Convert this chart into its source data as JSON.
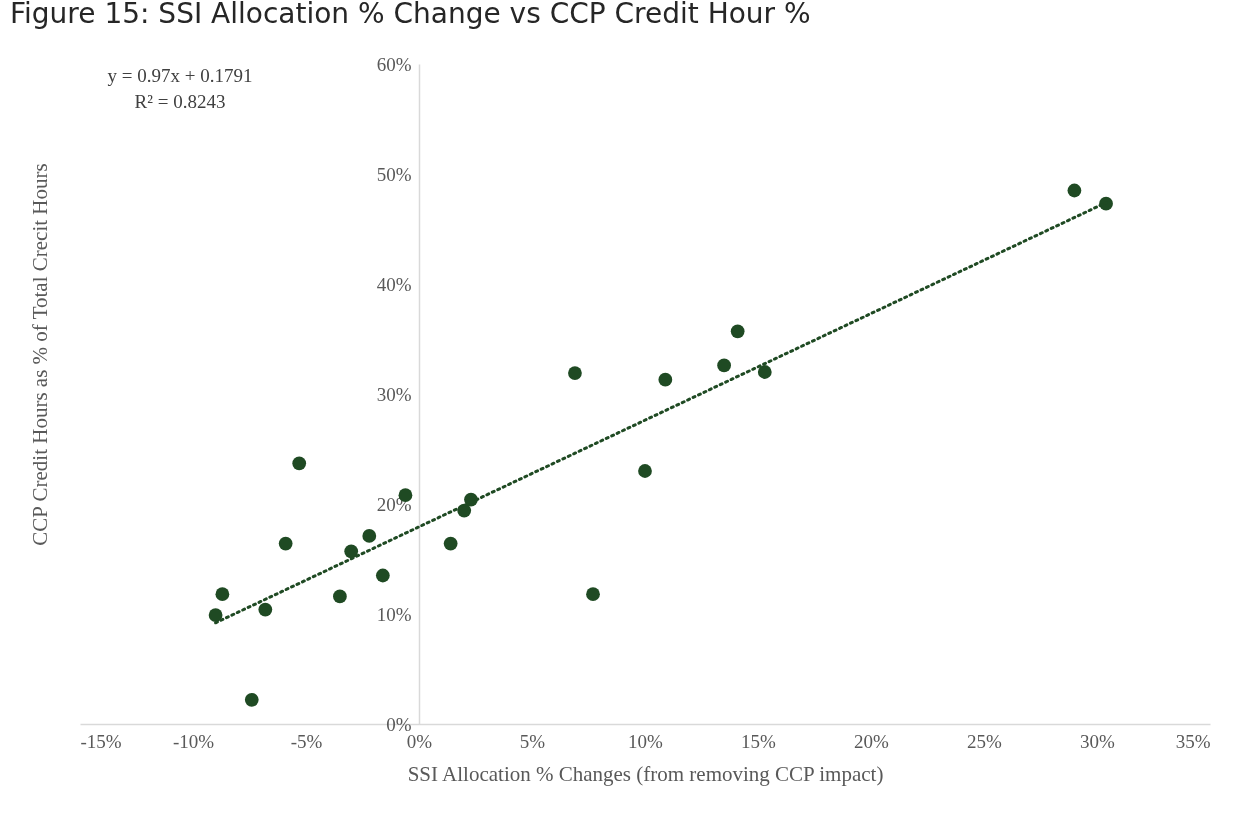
{
  "chart_data": {
    "type": "scatter",
    "title": "Figure 15: SSI Allocation % Change vs CCP Credit Hour %",
    "xlabel": "SSI Allocation % Changes (from removing CCP impact)",
    "ylabel": "CCP Credit Hours as % of Total Crecit Hours",
    "annotations": [
      "y = 0.97x + 0.1791",
      "R² = 0.8243"
    ],
    "xlim": [
      -15,
      35
    ],
    "xticks": [
      {
        "value": -15,
        "label": "-15%"
      },
      {
        "value": -10,
        "label": "-10%"
      },
      {
        "value": -5,
        "label": "-5%"
      },
      {
        "value": 0,
        "label": "0%"
      },
      {
        "value": 5,
        "label": "5%"
      },
      {
        "value": 10,
        "label": "10%"
      },
      {
        "value": 15,
        "label": "15%"
      },
      {
        "value": 20,
        "label": "20%"
      },
      {
        "value": 25,
        "label": "25%"
      },
      {
        "value": 30,
        "label": "30%"
      },
      {
        "value": 35,
        "label": "35%"
      }
    ],
    "ylim": [
      0,
      60
    ],
    "yticks": [
      {
        "value": 0,
        "label": "0%"
      },
      {
        "value": 10,
        "label": "10%"
      },
      {
        "value": 20,
        "label": "20%"
      },
      {
        "value": 30,
        "label": "30%"
      },
      {
        "value": 40,
        "label": "40%"
      },
      {
        "value": 50,
        "label": "50%"
      },
      {
        "value": 60,
        "label": "60%"
      }
    ],
    "grid": false,
    "series": [
      {
        "marker": "circle",
        "color": "#1f4a23",
        "x": [
          -9.0,
          -8.7,
          -7.4,
          -6.8,
          -5.9,
          -5.3,
          -3.5,
          -3.0,
          -2.2,
          -1.6,
          -0.6,
          1.4,
          2.0,
          2.3,
          6.9,
          7.7,
          10.0,
          10.9,
          13.5,
          14.1,
          15.3,
          29.0,
          30.4
        ],
        "values": [
          9.9,
          11.8,
          2.2,
          10.4,
          16.4,
          23.7,
          11.6,
          15.7,
          17.1,
          13.5,
          20.8,
          16.4,
          19.4,
          20.4,
          31.9,
          11.8,
          23.0,
          31.3,
          32.6,
          35.7,
          32.0,
          48.5,
          47.3
        ]
      },
      {
        "type": "line",
        "color": "#1f4a23",
        "line_style": "dotted",
        "x": [
          -9.0,
          30.4
        ],
        "values": [
          9.2,
          47.4
        ]
      }
    ]
  }
}
